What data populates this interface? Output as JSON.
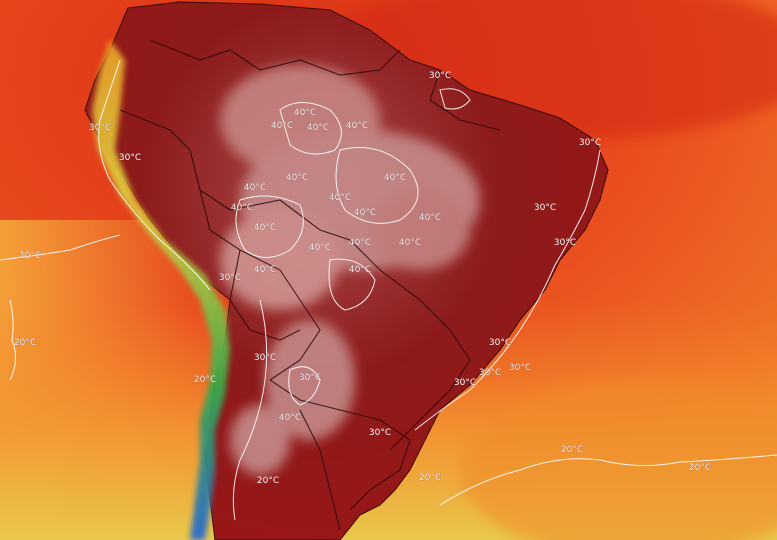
{
  "map": {
    "contours": [
      {
        "label": "30°C"
      },
      {
        "label": "20°C"
      },
      {
        "label": "40°C"
      }
    ],
    "labels": [
      "40°C",
      "40°C",
      "40°C",
      "40°C",
      "40°C",
      "40°C",
      "40°C",
      "40°C",
      "40°C",
      "40°C",
      "40°C",
      "40°C",
      "40°C",
      "40°C",
      "40°C",
      "40°C",
      "40°C",
      "40°C",
      "30°C",
      "30°C",
      "30°C",
      "30°C",
      "30°C",
      "30°C",
      "30°C",
      "30°C",
      "30°C",
      "30°C",
      "30°C",
      "30°C",
      "30°C",
      "30°C",
      "20°C",
      "20°C",
      "20°C",
      "20°C",
      "20°C",
      "20°C",
      "20°C"
    ],
    "colors": {
      "ocean_hot": "#e8401c",
      "ocean_warm": "#f06a20",
      "ocean_mild": "#f4a23a",
      "land_extreme": "#8e1414",
      "land_peak": "#b86a6a",
      "andes_green": "#3aa84a",
      "andes_yellow": "#e6d84a",
      "andes_blue": "#2a6ad0",
      "contour_line": "#ffffff",
      "border_line": "#2a0a0a"
    }
  }
}
